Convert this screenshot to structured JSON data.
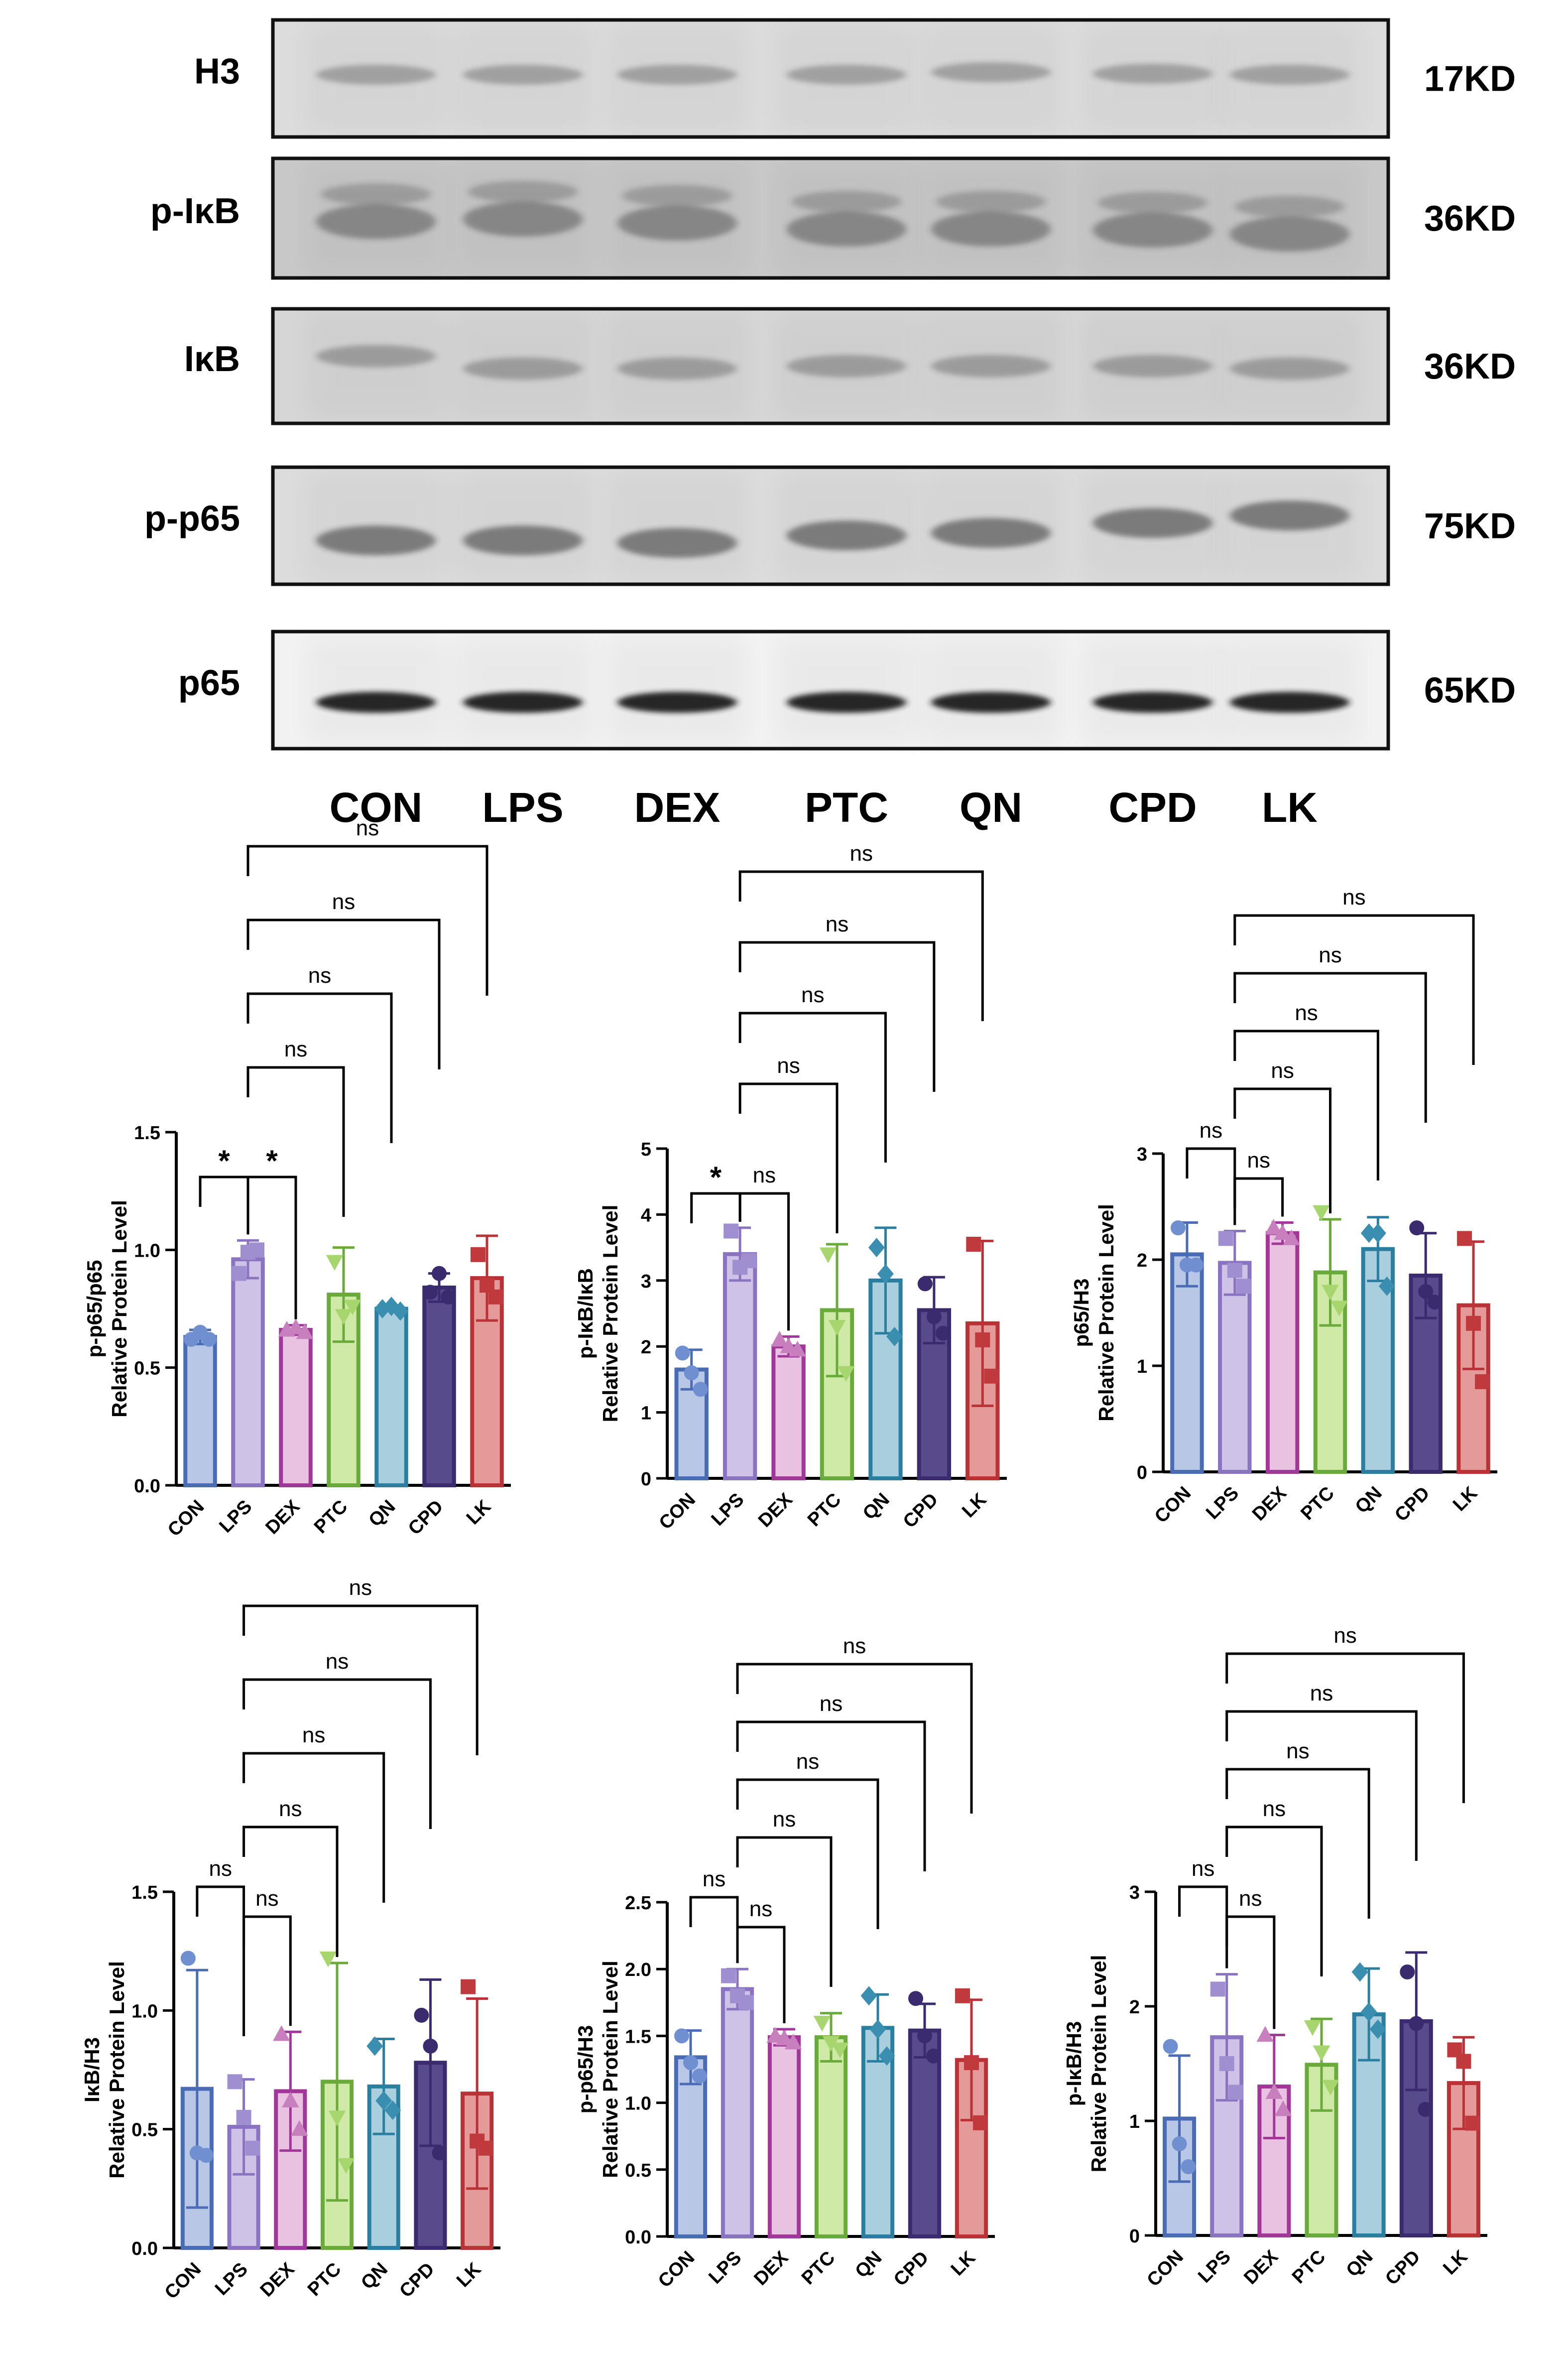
{
  "blot": {
    "rows": [
      {
        "label": "H3",
        "mw": "17KD"
      },
      {
        "label": "p-IκB",
        "mw": "36KD"
      },
      {
        "label": "IκB",
        "mw": "36KD"
      },
      {
        "label": "p-p65",
        "mw": "75KD"
      },
      {
        "label": "p65",
        "mw": "65KD"
      }
    ],
    "lanes": [
      "CON",
      "LPS",
      "DEX",
      "PTC",
      "QN",
      "CPD",
      "LK"
    ]
  },
  "chart_data": [
    {
      "type": "bar",
      "ylabel": [
        "p-p65/p65",
        "Relative Protein Level"
      ],
      "categories": [
        "CON",
        "LPS",
        "DEX",
        "PTC",
        "QN",
        "CPD",
        "LK"
      ],
      "values": [
        0.63,
        0.96,
        0.66,
        0.81,
        0.75,
        0.84,
        0.88
      ],
      "error": [
        0.03,
        0.08,
        0.02,
        0.2,
        0.01,
        0.06,
        0.18
      ],
      "points": [
        [
          0.62,
          0.65,
          0.62
        ],
        [
          0.9,
          0.99,
          1.0
        ],
        [
          0.66,
          0.67,
          0.65
        ],
        [
          0.95,
          0.72,
          0.76
        ],
        [
          0.75,
          0.76,
          0.74
        ],
        [
          0.82,
          0.9,
          0.8
        ],
        [
          0.98,
          0.85,
          0.8
        ]
      ],
      "ylim": [
        0,
        1.5
      ],
      "yticks": [
        "0.0",
        "0.5",
        "1.0",
        "1.5"
      ],
      "comparisons": [
        {
          "from": 0,
          "to": 1,
          "label": "*"
        },
        {
          "from": 1,
          "to": 2,
          "label": "*"
        },
        {
          "from": 1,
          "to": 3,
          "label": "ns"
        },
        {
          "from": 1,
          "to": 4,
          "label": "ns"
        },
        {
          "from": 1,
          "to": 5,
          "label": "ns"
        },
        {
          "from": 1,
          "to": 6,
          "label": "ns"
        }
      ]
    },
    {
      "type": "bar",
      "ylabel": [
        "p-IκB/IκB",
        "Relative Protein Level"
      ],
      "categories": [
        "CON",
        "LPS",
        "DEX",
        "PTC",
        "QN",
        "CPD",
        "LK"
      ],
      "values": [
        1.65,
        3.4,
        2.0,
        2.55,
        3.0,
        2.55,
        2.35
      ],
      "error": [
        0.3,
        0.4,
        0.15,
        1.0,
        0.8,
        0.5,
        1.25
      ],
      "points": [
        [
          1.9,
          1.6,
          1.35
        ],
        [
          3.75,
          3.2,
          3.3
        ],
        [
          2.1,
          2.0,
          1.95
        ],
        [
          3.4,
          2.3,
          1.6
        ],
        [
          3.5,
          3.1,
          2.15
        ],
        [
          2.95,
          2.45,
          2.2
        ],
        [
          3.55,
          2.1,
          1.55
        ]
      ],
      "ylim": [
        0,
        5
      ],
      "yticks": [
        "0",
        "1",
        "2",
        "3",
        "4",
        "5"
      ],
      "comparisons": [
        {
          "from": 0,
          "to": 1,
          "label": "*"
        },
        {
          "from": 1,
          "to": 2,
          "label": "ns"
        },
        {
          "from": 1,
          "to": 3,
          "label": "ns"
        },
        {
          "from": 1,
          "to": 4,
          "label": "ns"
        },
        {
          "from": 1,
          "to": 5,
          "label": "ns"
        },
        {
          "from": 1,
          "to": 6,
          "label": "ns"
        }
      ]
    },
    {
      "type": "bar",
      "ylabel": [
        "p65/H3",
        "Relative Protein Level"
      ],
      "categories": [
        "CON",
        "LPS",
        "DEX",
        "PTC",
        "QN",
        "CPD",
        "LK"
      ],
      "values": [
        2.05,
        1.97,
        2.25,
        1.88,
        2.1,
        1.85,
        1.57
      ],
      "error": [
        0.3,
        0.3,
        0.1,
        0.5,
        0.3,
        0.4,
        0.6
      ],
      "points": [
        [
          2.3,
          1.95,
          1.95
        ],
        [
          2.2,
          1.9,
          1.75
        ],
        [
          2.3,
          2.25,
          2.2
        ],
        [
          2.45,
          1.7,
          1.55
        ],
        [
          2.25,
          2.25,
          1.75
        ],
        [
          2.3,
          1.7,
          1.6
        ],
        [
          2.2,
          1.4,
          0.85
        ]
      ],
      "ylim": [
        0,
        3
      ],
      "yticks": [
        "0",
        "1",
        "2",
        "3"
      ],
      "comparisons": [
        {
          "from": 0,
          "to": 1,
          "label": "ns"
        },
        {
          "from": 1,
          "to": 2,
          "label": "ns"
        },
        {
          "from": 1,
          "to": 3,
          "label": "ns"
        },
        {
          "from": 1,
          "to": 4,
          "label": "ns"
        },
        {
          "from": 1,
          "to": 5,
          "label": "ns"
        },
        {
          "from": 1,
          "to": 6,
          "label": "ns"
        }
      ]
    },
    {
      "type": "bar",
      "ylabel": [
        "IκB/H3",
        "Relative Protein Level"
      ],
      "categories": [
        "CON",
        "LPS",
        "DEX",
        "PTC",
        "QN",
        "CPD",
        "LK"
      ],
      "values": [
        0.67,
        0.51,
        0.66,
        0.7,
        0.68,
        0.78,
        0.65
      ],
      "error": [
        0.5,
        0.2,
        0.25,
        0.5,
        0.2,
        0.35,
        0.4
      ],
      "points": [
        [
          1.22,
          0.4,
          0.39
        ],
        [
          0.7,
          0.55,
          0.42
        ],
        [
          0.9,
          0.62,
          0.5
        ],
        [
          1.22,
          0.55,
          0.35
        ],
        [
          0.85,
          0.62,
          0.58
        ],
        [
          0.98,
          0.85,
          0.4
        ],
        [
          1.1,
          0.45,
          0.42
        ]
      ],
      "ylim": [
        0,
        1.5
      ],
      "yticks": [
        "0.0",
        "0.5",
        "1.0",
        "1.5"
      ],
      "comparisons": [
        {
          "from": 0,
          "to": 1,
          "label": "ns"
        },
        {
          "from": 1,
          "to": 2,
          "label": "ns"
        },
        {
          "from": 1,
          "to": 3,
          "label": "ns"
        },
        {
          "from": 1,
          "to": 4,
          "label": "ns"
        },
        {
          "from": 1,
          "to": 5,
          "label": "ns"
        },
        {
          "from": 1,
          "to": 6,
          "label": "ns"
        }
      ]
    },
    {
      "type": "bar",
      "ylabel": [
        "p-p65/H3",
        "Relative Protein Level"
      ],
      "categories": [
        "CON",
        "LPS",
        "DEX",
        "PTC",
        "QN",
        "CPD",
        "LK"
      ],
      "values": [
        1.34,
        1.85,
        1.49,
        1.49,
        1.56,
        1.54,
        1.32
      ],
      "error": [
        0.2,
        0.15,
        0.06,
        0.18,
        0.25,
        0.2,
        0.45
      ],
      "points": [
        [
          1.5,
          1.3,
          1.2
        ],
        [
          1.95,
          1.8,
          1.75
        ],
        [
          1.5,
          1.48,
          1.45
        ],
        [
          1.6,
          1.45,
          1.4
        ],
        [
          1.8,
          1.55,
          1.35
        ],
        [
          1.78,
          1.5,
          1.35
        ],
        [
          1.8,
          1.3,
          0.85
        ]
      ],
      "ylim": [
        0,
        2.5
      ],
      "yticks": [
        "0.0",
        "0.5",
        "1.0",
        "1.5",
        "2.0",
        "2.5"
      ],
      "comparisons": [
        {
          "from": 0,
          "to": 1,
          "label": "ns"
        },
        {
          "from": 1,
          "to": 2,
          "label": "ns"
        },
        {
          "from": 1,
          "to": 3,
          "label": "ns"
        },
        {
          "from": 1,
          "to": 4,
          "label": "ns"
        },
        {
          "from": 1,
          "to": 5,
          "label": "ns"
        },
        {
          "from": 1,
          "to": 6,
          "label": "ns"
        }
      ]
    },
    {
      "type": "bar",
      "ylabel": [
        "p-IκB/H3",
        "Relative Protein Level"
      ],
      "categories": [
        "CON",
        "LPS",
        "DEX",
        "PTC",
        "QN",
        "CPD",
        "LK"
      ],
      "values": [
        1.02,
        1.73,
        1.3,
        1.49,
        1.93,
        1.87,
        1.33
      ],
      "error": [
        0.55,
        0.55,
        0.45,
        0.4,
        0.4,
        0.6,
        0.4
      ],
      "points": [
        [
          1.65,
          0.8,
          0.6
        ],
        [
          2.15,
          1.5,
          1.25
        ],
        [
          1.75,
          1.25,
          1.1
        ],
        [
          1.82,
          1.6,
          1.3
        ],
        [
          2.3,
          1.95,
          1.8
        ],
        [
          2.3,
          1.85,
          1.1
        ],
        [
          1.62,
          1.52,
          0.98
        ]
      ],
      "ylim": [
        0,
        3
      ],
      "yticks": [
        "0",
        "1",
        "2",
        "3"
      ],
      "comparisons": [
        {
          "from": 0,
          "to": 1,
          "label": "ns"
        },
        {
          "from": 1,
          "to": 2,
          "label": "ns"
        },
        {
          "from": 1,
          "to": 3,
          "label": "ns"
        },
        {
          "from": 1,
          "to": 4,
          "label": "ns"
        },
        {
          "from": 1,
          "to": 5,
          "label": "ns"
        },
        {
          "from": 1,
          "to": 6,
          "label": "ns"
        }
      ]
    }
  ],
  "colors": {
    "fills": [
      "#b8c7e6",
      "#cec3e6",
      "#e9c1e1",
      "#cfeaa6",
      "#a9cfdf",
      "#584b8c",
      "#e59a9a"
    ],
    "strokes": [
      "#4a6cb5",
      "#8a74c2",
      "#a2379a",
      "#6aaa3a",
      "#2a7fa0",
      "#3a2b6e",
      "#b83236"
    ],
    "points": [
      "#6f8fd0",
      "#9f8ed0",
      "#c77fbe",
      "#a8d66e",
      "#3a8fb0",
      "#3a2b6e",
      "#c0393d"
    ]
  }
}
